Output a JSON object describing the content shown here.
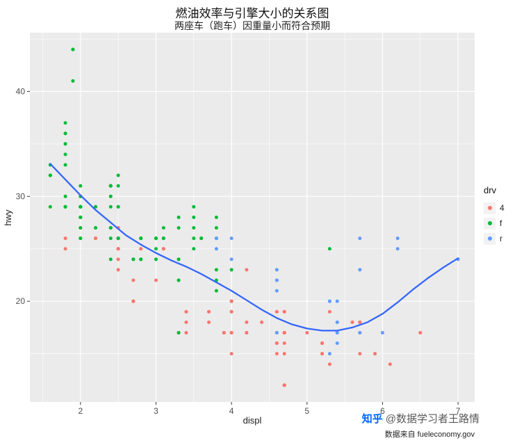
{
  "page": {
    "title": "燃油效率与引擎大小的关系图",
    "subtitle": "两座车（跑车）因重量小而符合预期",
    "caption": "数据来自 fueleconomy.gov",
    "watermark": {
      "logo": "知乎",
      "handle": "@数据学习者王路情"
    }
  },
  "legend": {
    "title": "drv",
    "items": [
      {
        "label": "4",
        "color": "#F8766D"
      },
      {
        "label": "f",
        "color": "#00BA38"
      },
      {
        "label": "r",
        "color": "#619CFF"
      }
    ]
  },
  "chart_data": {
    "type": "scatter",
    "title": "燃油效率与引擎大小的关系图",
    "subtitle": "两座车（跑车）因重量小而符合预期",
    "caption": "数据来自 fueleconomy.gov",
    "xlabel": "displ",
    "ylabel": "hwy",
    "xlim": [
      1.33,
      7.22
    ],
    "ylim": [
      10.4,
      45.6
    ],
    "x_ticks": [
      2,
      3,
      4,
      5,
      6,
      7
    ],
    "y_ticks": [
      20,
      30,
      40
    ],
    "x_minor_ticks": [
      1.5,
      2.5,
      3.5,
      4.5,
      5.5,
      6.5
    ],
    "y_minor_ticks": [
      15,
      25,
      35,
      45
    ],
    "grid": true,
    "legend_position": "right",
    "legend_title": "drv",
    "panel_bg": "#EBEBEB",
    "grid_color": "#FFFFFF",
    "tick_label_color": "#4D4D4D",
    "smooth_color": "#3366FF",
    "series": [
      {
        "name": "4",
        "color": "#F8766D",
        "points": [
          [
            1.8,
            26
          ],
          [
            1.8,
            25
          ],
          [
            2.0,
            28
          ],
          [
            2.0,
            27
          ],
          [
            2.2,
            26
          ],
          [
            2.2,
            26
          ],
          [
            2.5,
            25
          ],
          [
            2.5,
            24
          ],
          [
            2.5,
            27
          ],
          [
            2.5,
            25
          ],
          [
            2.5,
            26
          ],
          [
            2.5,
            23
          ],
          [
            2.5,
            26
          ],
          [
            2.5,
            26
          ],
          [
            2.5,
            25
          ],
          [
            2.5,
            27
          ],
          [
            2.5,
            25
          ],
          [
            2.5,
            27
          ],
          [
            2.7,
            20
          ],
          [
            2.7,
            20
          ],
          [
            2.7,
            20
          ],
          [
            2.7,
            22
          ],
          [
            2.8,
            25
          ],
          [
            2.8,
            25
          ],
          [
            2.8,
            24
          ],
          [
            3.0,
            22
          ],
          [
            3.1,
            25
          ],
          [
            3.1,
            25
          ],
          [
            3.1,
            25
          ],
          [
            3.3,
            17
          ],
          [
            3.3,
            17
          ],
          [
            3.4,
            19
          ],
          [
            3.4,
            17
          ],
          [
            3.4,
            19
          ],
          [
            3.4,
            18
          ],
          [
            3.7,
            19
          ],
          [
            3.7,
            18
          ],
          [
            3.7,
            19
          ],
          [
            3.9,
            17
          ],
          [
            3.9,
            17
          ],
          [
            3.9,
            17
          ],
          [
            4.0,
            17
          ],
          [
            4.0,
            19
          ],
          [
            4.0,
            17
          ],
          [
            4.0,
            19
          ],
          [
            4.0,
            20
          ],
          [
            4.0,
            15
          ],
          [
            4.0,
            17
          ],
          [
            4.0,
            19
          ],
          [
            4.0,
            20
          ],
          [
            4.0,
            20
          ],
          [
            4.0,
            20
          ],
          [
            4.2,
            17
          ],
          [
            4.2,
            17
          ],
          [
            4.2,
            23
          ],
          [
            4.2,
            18
          ],
          [
            4.4,
            18
          ],
          [
            4.6,
            16
          ],
          [
            4.6,
            16
          ],
          [
            4.6,
            17
          ],
          [
            4.6,
            19
          ],
          [
            4.6,
            19
          ],
          [
            4.6,
            15
          ],
          [
            4.7,
            19
          ],
          [
            4.7,
            19
          ],
          [
            4.7,
            12
          ],
          [
            4.7,
            17
          ],
          [
            4.7,
            12
          ],
          [
            4.7,
            17
          ],
          [
            4.7,
            17
          ],
          [
            4.7,
            16
          ],
          [
            4.7,
            12
          ],
          [
            4.7,
            12
          ],
          [
            4.7,
            17
          ],
          [
            4.7,
            12
          ],
          [
            4.7,
            19
          ],
          [
            4.7,
            17
          ],
          [
            4.7,
            15
          ],
          [
            5.0,
            17
          ],
          [
            5.2,
            15
          ],
          [
            5.2,
            16
          ],
          [
            5.2,
            16
          ],
          [
            5.2,
            15
          ],
          [
            5.2,
            16
          ],
          [
            5.3,
            19
          ],
          [
            5.3,
            14
          ],
          [
            5.6,
            18
          ],
          [
            5.7,
            15
          ],
          [
            5.7,
            18
          ],
          [
            5.7,
            17
          ],
          [
            5.7,
            18
          ],
          [
            5.7,
            18
          ],
          [
            5.9,
            15
          ],
          [
            5.9,
            15
          ],
          [
            6.1,
            14
          ],
          [
            6.5,
            17
          ]
        ]
      },
      {
        "name": "f",
        "color": "#00BA38",
        "points": [
          [
            1.6,
            33
          ],
          [
            1.6,
            32
          ],
          [
            1.6,
            32
          ],
          [
            1.6,
            32
          ],
          [
            1.6,
            29
          ],
          [
            1.8,
            29
          ],
          [
            1.8,
            29
          ],
          [
            1.8,
            34
          ],
          [
            1.8,
            36
          ],
          [
            1.8,
            36
          ],
          [
            1.8,
            30
          ],
          [
            1.8,
            33
          ],
          [
            1.8,
            35
          ],
          [
            1.8,
            37
          ],
          [
            1.8,
            35
          ],
          [
            1.8,
            29
          ],
          [
            1.8,
            29
          ],
          [
            1.9,
            44
          ],
          [
            1.9,
            44
          ],
          [
            1.9,
            41
          ],
          [
            2.0,
            31
          ],
          [
            2.0,
            30
          ],
          [
            2.0,
            29
          ],
          [
            2.0,
            26
          ],
          [
            2.0,
            29
          ],
          [
            2.0,
            28
          ],
          [
            2.0,
            27
          ],
          [
            2.0,
            29
          ],
          [
            2.0,
            29
          ],
          [
            2.0,
            28
          ],
          [
            2.0,
            29
          ],
          [
            2.0,
            29
          ],
          [
            2.0,
            29
          ],
          [
            2.0,
            26
          ],
          [
            2.0,
            29
          ],
          [
            2.0,
            28
          ],
          [
            2.0,
            29
          ],
          [
            2.2,
            29
          ],
          [
            2.2,
            27
          ],
          [
            2.2,
            27
          ],
          [
            2.2,
            29
          ],
          [
            2.4,
            27
          ],
          [
            2.4,
            30
          ],
          [
            2.4,
            24
          ],
          [
            2.4,
            26
          ],
          [
            2.4,
            27
          ],
          [
            2.4,
            30
          ],
          [
            2.4,
            31
          ],
          [
            2.4,
            29
          ],
          [
            2.4,
            27
          ],
          [
            2.4,
            31
          ],
          [
            2.4,
            31
          ],
          [
            2.4,
            31
          ],
          [
            2.4,
            31
          ],
          [
            2.5,
            26
          ],
          [
            2.5,
            26
          ],
          [
            2.5,
            31
          ],
          [
            2.5,
            32
          ],
          [
            2.5,
            29
          ],
          [
            2.5,
            29
          ],
          [
            2.7,
            24
          ],
          [
            2.7,
            24
          ],
          [
            2.8,
            26
          ],
          [
            2.8,
            26
          ],
          [
            2.8,
            24
          ],
          [
            2.8,
            24
          ],
          [
            2.8,
            26
          ],
          [
            3.0,
            24
          ],
          [
            3.0,
            26
          ],
          [
            3.0,
            25
          ],
          [
            3.0,
            26
          ],
          [
            3.0,
            26
          ],
          [
            3.0,
            26
          ],
          [
            3.1,
            27
          ],
          [
            3.1,
            26
          ],
          [
            3.1,
            26
          ],
          [
            3.3,
            22
          ],
          [
            3.3,
            22
          ],
          [
            3.3,
            24
          ],
          [
            3.3,
            24
          ],
          [
            3.3,
            17
          ],
          [
            3.3,
            28
          ],
          [
            3.3,
            27
          ],
          [
            3.5,
            29
          ],
          [
            3.5,
            27
          ],
          [
            3.5,
            26
          ],
          [
            3.5,
            25
          ],
          [
            3.5,
            28
          ],
          [
            3.6,
            26
          ],
          [
            3.6,
            26
          ],
          [
            3.8,
            22
          ],
          [
            3.8,
            21
          ],
          [
            3.8,
            23
          ],
          [
            3.8,
            26
          ],
          [
            3.8,
            27
          ],
          [
            3.8,
            28
          ],
          [
            4.0,
            23
          ],
          [
            5.3,
            25
          ]
        ]
      },
      {
        "name": "r",
        "color": "#619CFF",
        "points": [
          [
            3.8,
            26
          ],
          [
            3.8,
            25
          ],
          [
            4.0,
            26
          ],
          [
            4.0,
            24
          ],
          [
            4.6,
            21
          ],
          [
            4.6,
            22
          ],
          [
            4.6,
            23
          ],
          [
            4.6,
            22
          ],
          [
            4.6,
            17
          ],
          [
            5.3,
            20
          ],
          [
            5.3,
            15
          ],
          [
            5.3,
            20
          ],
          [
            5.4,
            17
          ],
          [
            5.4,
            18
          ],
          [
            5.4,
            20
          ],
          [
            5.4,
            17
          ],
          [
            5.4,
            16
          ],
          [
            5.4,
            18
          ],
          [
            5.7,
            17
          ],
          [
            5.7,
            26
          ],
          [
            5.7,
            23
          ],
          [
            6.0,
            17
          ],
          [
            6.2,
            26
          ],
          [
            6.2,
            25
          ],
          [
            7.0,
            24
          ]
        ]
      }
    ],
    "smooth_line": [
      [
        1.6,
        33.1
      ],
      [
        1.8,
        31.6
      ],
      [
        2.0,
        30.1
      ],
      [
        2.2,
        28.7
      ],
      [
        2.4,
        27.5
      ],
      [
        2.6,
        26.3
      ],
      [
        2.8,
        25.4
      ],
      [
        3.0,
        24.6
      ],
      [
        3.2,
        23.9
      ],
      [
        3.4,
        23.3
      ],
      [
        3.6,
        22.6
      ],
      [
        3.8,
        21.8
      ],
      [
        4.0,
        21.0
      ],
      [
        4.2,
        20.1
      ],
      [
        4.4,
        19.2
      ],
      [
        4.6,
        18.4
      ],
      [
        4.8,
        17.8
      ],
      [
        5.0,
        17.4
      ],
      [
        5.2,
        17.2
      ],
      [
        5.4,
        17.2
      ],
      [
        5.6,
        17.5
      ],
      [
        5.8,
        18.0
      ],
      [
        6.0,
        18.8
      ],
      [
        6.2,
        19.9
      ],
      [
        6.4,
        21.1
      ],
      [
        6.6,
        22.2
      ],
      [
        6.8,
        23.2
      ],
      [
        7.0,
        24.1
      ]
    ]
  }
}
